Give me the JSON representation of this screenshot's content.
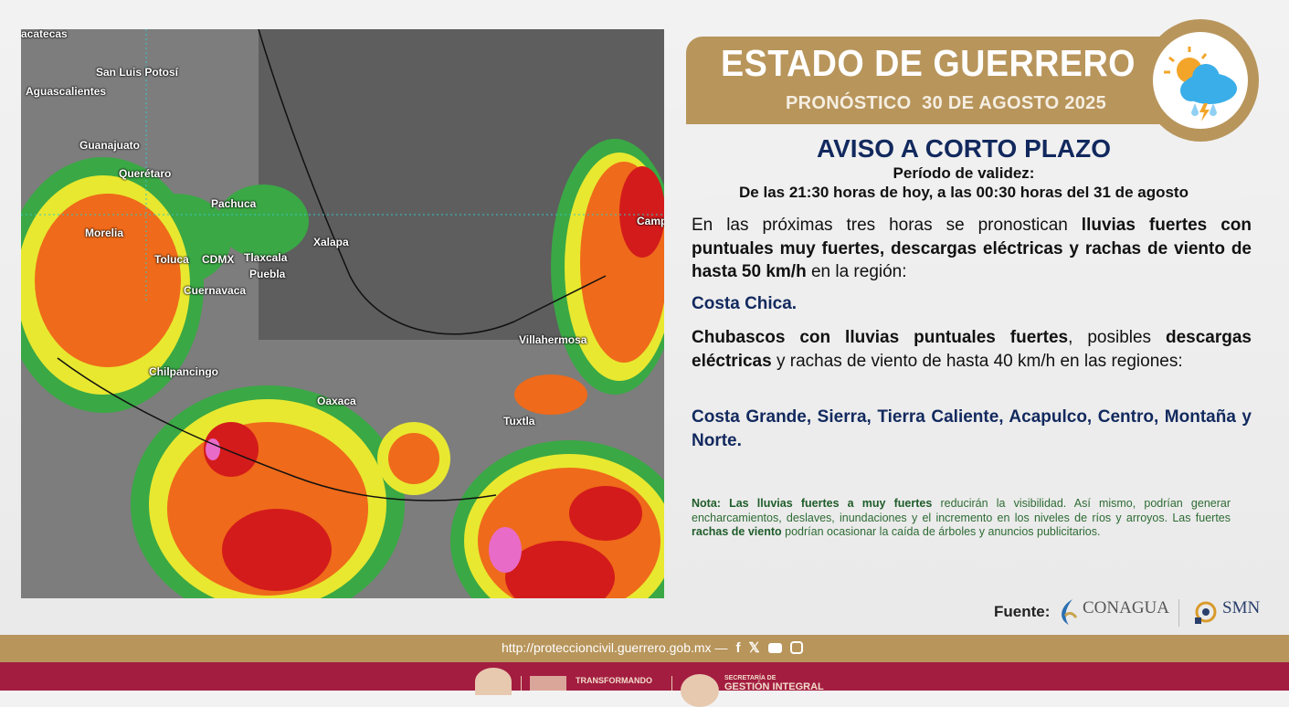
{
  "map": {
    "cities": [
      "acatecas",
      "San Luis Potosí",
      "Aguascalientes",
      "Guanajuato",
      "Querétaro",
      "Morelia",
      "Pachuca",
      "Xalapa",
      "Toluca",
      "CDMX",
      "Tlaxcala",
      "Puebla",
      "Cuernavaca",
      "Villahermosa",
      "Chilpancingo",
      "Oaxaca",
      "Tuxtla",
      "Camp"
    ]
  },
  "header": {
    "title": "ESTADO DE GUERRERO",
    "subtitle": "PRONÓSTICO  30 DE AGOSTO 2025",
    "icon": "sun-cloud-rain-lightning-icon"
  },
  "notice": {
    "title": "AVISO A CORTO PLAZO",
    "validity_label": "Período de validez:",
    "validity": "De las 21:30 horas de hoy, a las 00:30 horas del 31 de agosto",
    "p1_a": "En las próximas tres horas se pronostican ",
    "p1_b": "lluvias fuertes con puntuales muy fuertes, descargas eléctricas y rachas de viento de hasta 50 km/h",
    "p1_c": " en la región:",
    "region1": "Costa Chica.",
    "p2_a": "Chubascos con lluvias puntuales fuertes",
    "p2_b": ", posibles ",
    "p2_c": "descargas eléctricas",
    "p2_d": " y rachas de viento de hasta 40 km/h en las regiones:",
    "region2": "Costa Grande, Sierra, Tierra Caliente, Acapulco, Centro, Montaña y Norte."
  },
  "note": {
    "a": "Nota: Las lluvias fuertes a muy fuertes",
    "b": " reducirán la visibilidad. Así mismo, podrían generar encharcamientos, deslaves, inundaciones y el incremento en los niveles de ríos y arroyos. Las fuertes ",
    "c": "rachas de viento",
    "d": " podrían ocasionar la caída de árboles y anuncios publicitarios."
  },
  "source": {
    "label": "Fuente:",
    "conagua": "CONAGUA",
    "smn": "SMN"
  },
  "footer": {
    "url": "http://proteccioncivil.guerrero.gob.mx —",
    "social": [
      "facebook-icon",
      "x-icon",
      "youtube-icon",
      "instagram-icon"
    ],
    "gov1": "TRANSFORMANDO",
    "gov2": "SECRETARÍA DE",
    "gov3": "GESTIÓN INTEGRAL"
  },
  "colors": {
    "gold": "#b8955b",
    "navy": "#12295e",
    "wine": "#a31d40",
    "green": "#2d6b33"
  }
}
